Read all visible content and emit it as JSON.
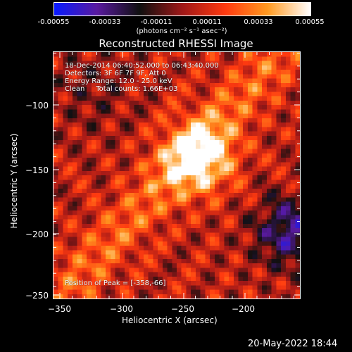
{
  "colorbar": {
    "tick_labels": [
      "-0.00055",
      "-0.00033",
      "-0.00011",
      "0.00011",
      "0.00033",
      "0.00055"
    ],
    "units_text": "(photons cm⁻² s⁻¹ asec⁻²)",
    "colormap": [
      "#0a1aff",
      "#5a1aa0",
      "#101010",
      "#a01818",
      "#ff3a10",
      "#ff9a20",
      "#ffffff"
    ]
  },
  "image": {
    "title": "Reconstructed RHESSI Image",
    "annotations": [
      "18-Dec-2014 06:40:52.000 to 06:43:40.000",
      "Detectors: 3F 6F 7F 9F, Att 0",
      "Energy Range: 12.0 - 25.0 keV",
      "Clean     Total counts: 1.66E+03"
    ],
    "peak_text": "Position of Peak = [-358,-66]",
    "x_label": "Heliocentric X (arcsec)",
    "y_label": "Heliocentric Y (arcsec)",
    "x_ticks": [
      "−350",
      "−300",
      "−250",
      "−200"
    ],
    "y_ticks": [
      "−100",
      "−150",
      "−200",
      "−250"
    ]
  },
  "footer": {
    "timestamp": "20-May-2022 18:44"
  }
}
